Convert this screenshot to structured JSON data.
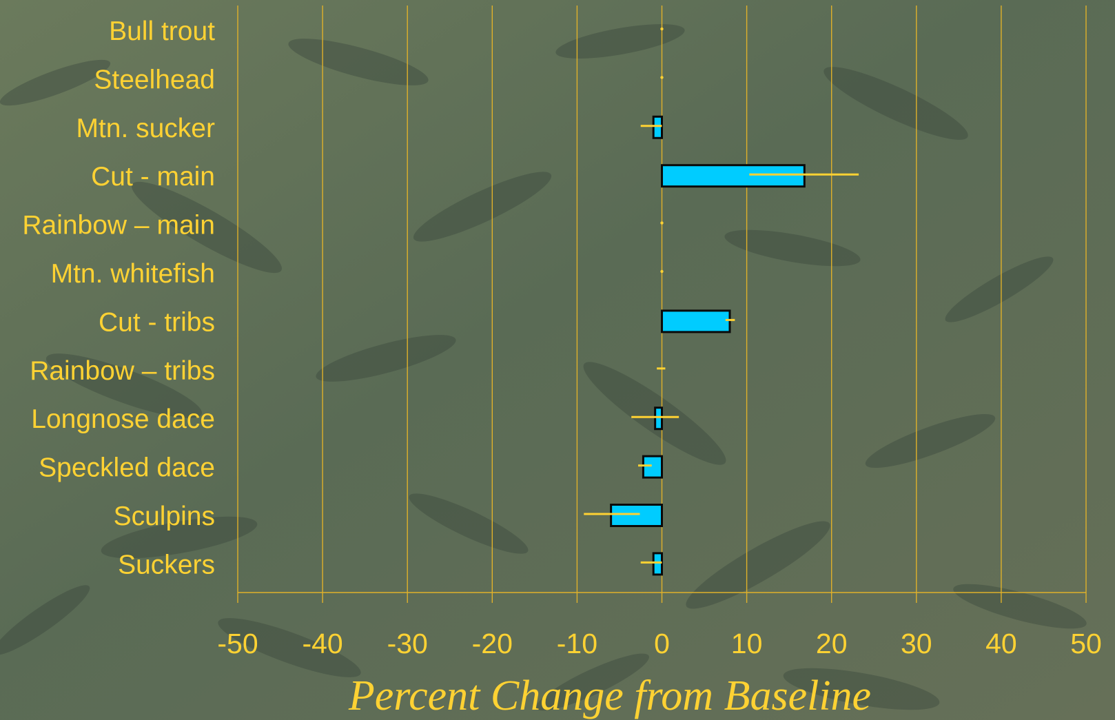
{
  "colors": {
    "text": "#ffd233",
    "grid": "#e0b12a",
    "bar_fill": "#00ccff",
    "bar_stroke": "#0a0a0a",
    "error_bar": "#ffd233"
  },
  "chart_data": {
    "type": "bar",
    "orientation": "horizontal",
    "xlabel": "Percent Change from Baseline",
    "ylabel": "",
    "xlim": [
      -50,
      50
    ],
    "xticks": [
      "-50",
      "-40",
      "-30",
      "-20",
      "-10",
      "0",
      "10",
      "20",
      "30",
      "40",
      "50"
    ],
    "grid": "vertical",
    "categories": [
      "Bull trout",
      "Steelhead",
      "Mtn. sucker",
      "Cut - main",
      "Rainbow – main",
      "Mtn. whitefish",
      "Cut - tribs",
      "Rainbow – tribs",
      "Longnose dace",
      "Speckled dace",
      "Sculpins",
      "Suckers"
    ],
    "values": [
      0,
      0,
      -1,
      16.8,
      0,
      0,
      8,
      0,
      -0.8,
      -2.2,
      -6,
      -1
    ],
    "error_low": [
      0,
      0,
      -2.5,
      10.3,
      0,
      0,
      7.5,
      -0.6,
      -3.6,
      -2.8,
      -9.2,
      -2.5
    ],
    "error_high": [
      0,
      0,
      0,
      23.2,
      0,
      0,
      8.6,
      0.4,
      2,
      -1.2,
      -2.6,
      0
    ]
  }
}
